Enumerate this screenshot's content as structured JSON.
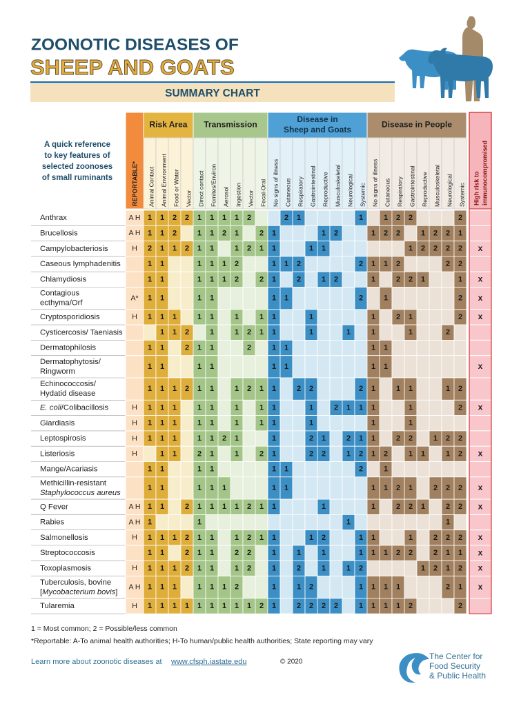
{
  "header": {
    "title_line1": "ZOONOTIC DISEASES OF",
    "title_line2": "SHEEP AND GOATS",
    "subtitle": "SUMMARY CHART"
  },
  "intro": [
    "A quick reference",
    "to key features of",
    "selected zoonoses",
    "of small ruminants"
  ],
  "table": {
    "reportable_header": "REPORTABLE*",
    "high_risk_header": [
      "High risk to",
      "immunocompromised"
    ],
    "groups": [
      {
        "title": [
          "Risk Area"
        ],
        "color": "#dfae3a",
        "light": "#f8edcb",
        "head": "#e4b440",
        "colhead": "#fbf2d8",
        "columns": [
          "Animal Contact",
          "Animal Environment",
          "Food or Water",
          "Vector"
        ]
      },
      {
        "title": [
          "Transmission"
        ],
        "color": "#a3c588",
        "light": "#e7f0dc",
        "head": "#a8c78c",
        "colhead": "#eef4e6",
        "columns": [
          "Direct contact",
          "Fomites/Environ",
          "Aerosol",
          "Ingestion",
          "Vector",
          "Fecal-Oral"
        ]
      },
      {
        "title": [
          "Disease in",
          "Sheep and Goats"
        ],
        "color": "#3c8fc5",
        "light": "#d4e8f4",
        "head": "#4fa0d4",
        "colhead": "#e2f0f8",
        "columns": [
          "No signs of illness",
          "Cutaneous",
          "Respiratory",
          "Gastrointestinal",
          "Reproductive",
          "Musculoskeletal",
          "Neurological",
          "Systemic"
        ]
      },
      {
        "title": [
          "Disease in People"
        ],
        "color": "#a0805f",
        "light": "#ebe1d6",
        "head": "#ab8d6d",
        "colhead": "#f1ebe4",
        "columns": [
          "No signs of illness",
          "Cutaneous",
          "Respiratory",
          "Gastrointestinal",
          "Reproductive",
          "Musculoskeletal",
          "Neurological",
          "Systemic"
        ]
      }
    ],
    "rows": [
      {
        "name": [
          [
            "Anthrax"
          ]
        ],
        "reportable": "A H",
        "values": [
          1,
          1,
          2,
          2,
          1,
          1,
          1,
          1,
          2,
          null,
          null,
          2,
          1,
          null,
          null,
          null,
          null,
          1,
          null,
          1,
          2,
          2,
          null,
          null,
          null,
          2
        ]
      },
      {
        "name": [
          [
            "Brucellosis"
          ]
        ],
        "reportable": "A H",
        "values": [
          1,
          1,
          2,
          null,
          1,
          1,
          2,
          1,
          null,
          2,
          1,
          null,
          null,
          null,
          1,
          2,
          null,
          null,
          1,
          2,
          2,
          null,
          1,
          2,
          2,
          1
        ]
      },
      {
        "name": [
          [
            "Campylobacteriosis"
          ]
        ],
        "reportable": "H",
        "values": [
          2,
          1,
          1,
          2,
          1,
          1,
          null,
          1,
          2,
          1,
          1,
          null,
          null,
          1,
          1,
          null,
          null,
          null,
          null,
          null,
          null,
          1,
          2,
          2,
          2,
          2
        ],
        "high_risk": "x"
      },
      {
        "name": [
          [
            "Caseous lymphadenitis"
          ]
        ],
        "values": [
          1,
          1,
          null,
          null,
          1,
          1,
          1,
          2,
          null,
          null,
          1,
          1,
          2,
          null,
          null,
          null,
          null,
          2,
          1,
          1,
          2,
          null,
          null,
          null,
          2,
          2
        ]
      },
      {
        "name": [
          [
            "Chlamydiosis"
          ]
        ],
        "values": [
          1,
          1,
          null,
          null,
          1,
          1,
          1,
          2,
          null,
          2,
          1,
          null,
          2,
          null,
          1,
          2,
          null,
          null,
          1,
          null,
          2,
          2,
          1,
          null,
          null,
          1
        ],
        "high_risk": "x"
      },
      {
        "name": [
          [
            "Contagious"
          ],
          [
            "ecthyma/Orf"
          ]
        ],
        "reportable": "A*",
        "values": [
          1,
          1,
          null,
          null,
          1,
          1,
          null,
          null,
          null,
          null,
          1,
          1,
          null,
          null,
          null,
          null,
          null,
          2,
          null,
          1,
          null,
          null,
          null,
          null,
          null,
          2
        ],
        "high_risk": "x"
      },
      {
        "name": [
          [
            "Cryptosporidiosis"
          ]
        ],
        "reportable": "H",
        "values": [
          1,
          1,
          1,
          null,
          1,
          1,
          null,
          1,
          null,
          1,
          1,
          null,
          null,
          1,
          null,
          null,
          null,
          null,
          1,
          null,
          2,
          1,
          null,
          null,
          null,
          2
        ],
        "high_risk": "x"
      },
      {
        "name": [
          [
            "Cysticercosis/ Taeniasis"
          ]
        ],
        "values": [
          null,
          1,
          1,
          2,
          null,
          1,
          null,
          1,
          2,
          1,
          1,
          null,
          null,
          1,
          null,
          null,
          1,
          null,
          1,
          null,
          null,
          1,
          null,
          null,
          2,
          null
        ]
      },
      {
        "name": [
          [
            "Dermatophilosis"
          ]
        ],
        "values": [
          1,
          1,
          null,
          2,
          1,
          1,
          null,
          null,
          2,
          null,
          1,
          1,
          null,
          null,
          null,
          null,
          null,
          null,
          1,
          1,
          null,
          null,
          null,
          null,
          null,
          null
        ]
      },
      {
        "name": [
          [
            "Dermatophytosis/"
          ],
          [
            "Ringworm"
          ]
        ],
        "values": [
          1,
          1,
          null,
          null,
          1,
          1,
          null,
          null,
          null,
          null,
          1,
          1,
          null,
          null,
          null,
          null,
          null,
          null,
          1,
          1,
          null,
          null,
          null,
          null,
          null,
          null
        ],
        "high_risk": "x"
      },
      {
        "name": [
          [
            "Echinococcosis/"
          ],
          [
            "Hydatid disease"
          ]
        ],
        "values": [
          1,
          1,
          1,
          2,
          1,
          1,
          null,
          1,
          2,
          1,
          1,
          null,
          2,
          2,
          null,
          null,
          null,
          2,
          1,
          null,
          1,
          1,
          null,
          null,
          1,
          2
        ]
      },
      {
        "name": [
          [
            {
              "text": "E. coli",
              "italic": true
            },
            "/Colibacillosis"
          ]
        ],
        "reportable": "H",
        "values": [
          1,
          1,
          1,
          null,
          1,
          1,
          null,
          1,
          null,
          1,
          1,
          null,
          null,
          1,
          null,
          2,
          1,
          1,
          1,
          null,
          null,
          1,
          null,
          null,
          null,
          2
        ],
        "high_risk": "x"
      },
      {
        "name": [
          [
            "Giardiasis"
          ]
        ],
        "reportable": "H",
        "values": [
          1,
          1,
          1,
          null,
          1,
          1,
          null,
          1,
          null,
          1,
          1,
          null,
          null,
          1,
          null,
          null,
          null,
          null,
          1,
          null,
          null,
          1,
          null,
          null,
          null,
          null
        ]
      },
      {
        "name": [
          [
            "Leptospirosis"
          ]
        ],
        "reportable": "H",
        "values": [
          1,
          1,
          1,
          null,
          1,
          1,
          2,
          1,
          null,
          null,
          1,
          null,
          null,
          2,
          1,
          null,
          2,
          1,
          1,
          null,
          2,
          2,
          null,
          1,
          2,
          2
        ]
      },
      {
        "name": [
          [
            "Listeriosis"
          ]
        ],
        "reportable": "H",
        "values": [
          null,
          1,
          1,
          null,
          2,
          1,
          null,
          1,
          null,
          2,
          1,
          null,
          null,
          2,
          2,
          null,
          1,
          2,
          1,
          2,
          null,
          1,
          1,
          null,
          1,
          2
        ],
        "high_risk": "x"
      },
      {
        "name": [
          [
            "Mange/Acariasis"
          ]
        ],
        "values": [
          1,
          1,
          null,
          null,
          1,
          1,
          null,
          null,
          null,
          null,
          1,
          1,
          null,
          null,
          null,
          null,
          null,
          2,
          null,
          1,
          null,
          null,
          null,
          null,
          null,
          null
        ]
      },
      {
        "name": [
          [
            "Methicillin-resistant"
          ],
          [
            {
              "text": "Staphylococcus aureus",
              "italic": true
            }
          ]
        ],
        "values": [
          1,
          1,
          null,
          null,
          1,
          1,
          1,
          null,
          null,
          null,
          1,
          1,
          null,
          null,
          null,
          null,
          null,
          null,
          1,
          1,
          2,
          1,
          null,
          2,
          2,
          2
        ],
        "high_risk": "x"
      },
      {
        "name": [
          [
            "Q Fever"
          ]
        ],
        "reportable": "A H",
        "values": [
          1,
          1,
          null,
          2,
          1,
          1,
          1,
          1,
          2,
          1,
          1,
          null,
          null,
          null,
          1,
          null,
          null,
          null,
          1,
          null,
          2,
          2,
          1,
          null,
          2,
          2
        ],
        "high_risk": "x"
      },
      {
        "name": [
          [
            "Rabies"
          ]
        ],
        "reportable": "A H",
        "values": [
          1,
          null,
          null,
          null,
          1,
          null,
          null,
          null,
          null,
          null,
          null,
          null,
          null,
          null,
          null,
          null,
          1,
          null,
          null,
          null,
          null,
          null,
          null,
          null,
          1,
          null
        ]
      },
      {
        "name": [
          [
            "Salmonellosis"
          ]
        ],
        "reportable": "H",
        "values": [
          1,
          1,
          1,
          2,
          1,
          1,
          null,
          1,
          2,
          1,
          1,
          null,
          null,
          1,
          2,
          null,
          null,
          1,
          1,
          null,
          null,
          1,
          null,
          2,
          2,
          2
        ],
        "high_risk": "x"
      },
      {
        "name": [
          [
            "Streptococcosis"
          ]
        ],
        "values": [
          1,
          1,
          null,
          2,
          1,
          1,
          null,
          2,
          2,
          null,
          1,
          null,
          1,
          null,
          1,
          null,
          null,
          1,
          1,
          1,
          2,
          2,
          null,
          2,
          1,
          1
        ],
        "high_risk": "x"
      },
      {
        "name": [
          [
            "Toxoplasmosis"
          ]
        ],
        "reportable": "H",
        "values": [
          1,
          1,
          1,
          2,
          1,
          1,
          null,
          1,
          2,
          null,
          1,
          null,
          2,
          null,
          1,
          null,
          1,
          2,
          null,
          null,
          null,
          null,
          1,
          2,
          1,
          2
        ],
        "high_risk": "x"
      },
      {
        "name": [
          [
            "Tuberculosis, bovine"
          ],
          [
            "[",
            {
              "text": "Mycobacterium bovis",
              "italic": true
            },
            "]"
          ]
        ],
        "reportable": "A H",
        "values": [
          1,
          1,
          1,
          null,
          1,
          1,
          1,
          2,
          null,
          null,
          1,
          null,
          1,
          2,
          null,
          null,
          null,
          1,
          1,
          1,
          1,
          null,
          null,
          null,
          2,
          1
        ],
        "high_risk": "x"
      },
      {
        "name": [
          [
            "Tularemia"
          ]
        ],
        "reportable": "H",
        "values": [
          1,
          1,
          1,
          1,
          1,
          1,
          1,
          1,
          1,
          2,
          1,
          null,
          2,
          2,
          2,
          2,
          null,
          1,
          1,
          1,
          1,
          2,
          null,
          null,
          null,
          2
        ]
      }
    ]
  },
  "footer": {
    "legend": "1 = Most common;  2 = Possible/less common",
    "reportable_note": "*Reportable:   A-To animal health authorities; H-To human/public health authorities; State reporting may vary",
    "learn_more": "Learn more about zoonotic diseases at",
    "url": "www.cfsph.iastate.edu",
    "copyright": "© 2020",
    "org": [
      "The Center for",
      "Food Security",
      "& Public Health"
    ]
  }
}
